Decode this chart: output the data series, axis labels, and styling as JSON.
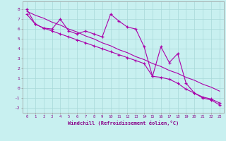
{
  "xlabel": "Windchill (Refroidissement éolien,°C)",
  "bg_color": "#c8f0f0",
  "grid_color": "#a8d8d8",
  "line_color": "#aa00aa",
  "xlim": [
    -0.5,
    23.5
  ],
  "ylim": [
    -2.5,
    8.8
  ],
  "xticks": [
    0,
    1,
    2,
    3,
    4,
    5,
    6,
    7,
    8,
    9,
    10,
    11,
    12,
    13,
    14,
    15,
    16,
    17,
    18,
    19,
    20,
    21,
    22,
    23
  ],
  "yticks": [
    -2,
    -1,
    0,
    1,
    2,
    3,
    4,
    5,
    6,
    7,
    8
  ],
  "x_data": [
    0,
    1,
    2,
    3,
    4,
    5,
    6,
    7,
    8,
    9,
    10,
    11,
    12,
    13,
    14,
    15,
    16,
    17,
    18,
    19,
    20,
    21,
    22,
    23
  ],
  "y_main": [
    8.0,
    6.5,
    6.1,
    6.0,
    7.0,
    5.8,
    5.5,
    5.8,
    5.5,
    5.2,
    7.5,
    6.8,
    6.2,
    6.0,
    4.2,
    1.2,
    4.2,
    2.6,
    3.5,
    0.5,
    -0.5,
    -1.0,
    -1.2,
    -1.7
  ],
  "y_smooth1": [
    7.5,
    6.5,
    6.1,
    5.8,
    5.5,
    5.2,
    4.9,
    4.6,
    4.3,
    4.0,
    3.7,
    3.4,
    3.1,
    2.8,
    2.5,
    1.2,
    1.1,
    0.9,
    0.5,
    -0.1,
    -0.5,
    -0.9,
    -1.1,
    -1.5
  ],
  "y_smooth2": [
    7.8,
    7.4,
    7.1,
    6.7,
    6.4,
    6.0,
    5.7,
    5.3,
    5.0,
    4.6,
    4.3,
    3.9,
    3.6,
    3.2,
    2.9,
    2.5,
    2.2,
    1.8,
    1.5,
    1.1,
    0.8,
    0.4,
    0.1,
    -0.3
  ]
}
